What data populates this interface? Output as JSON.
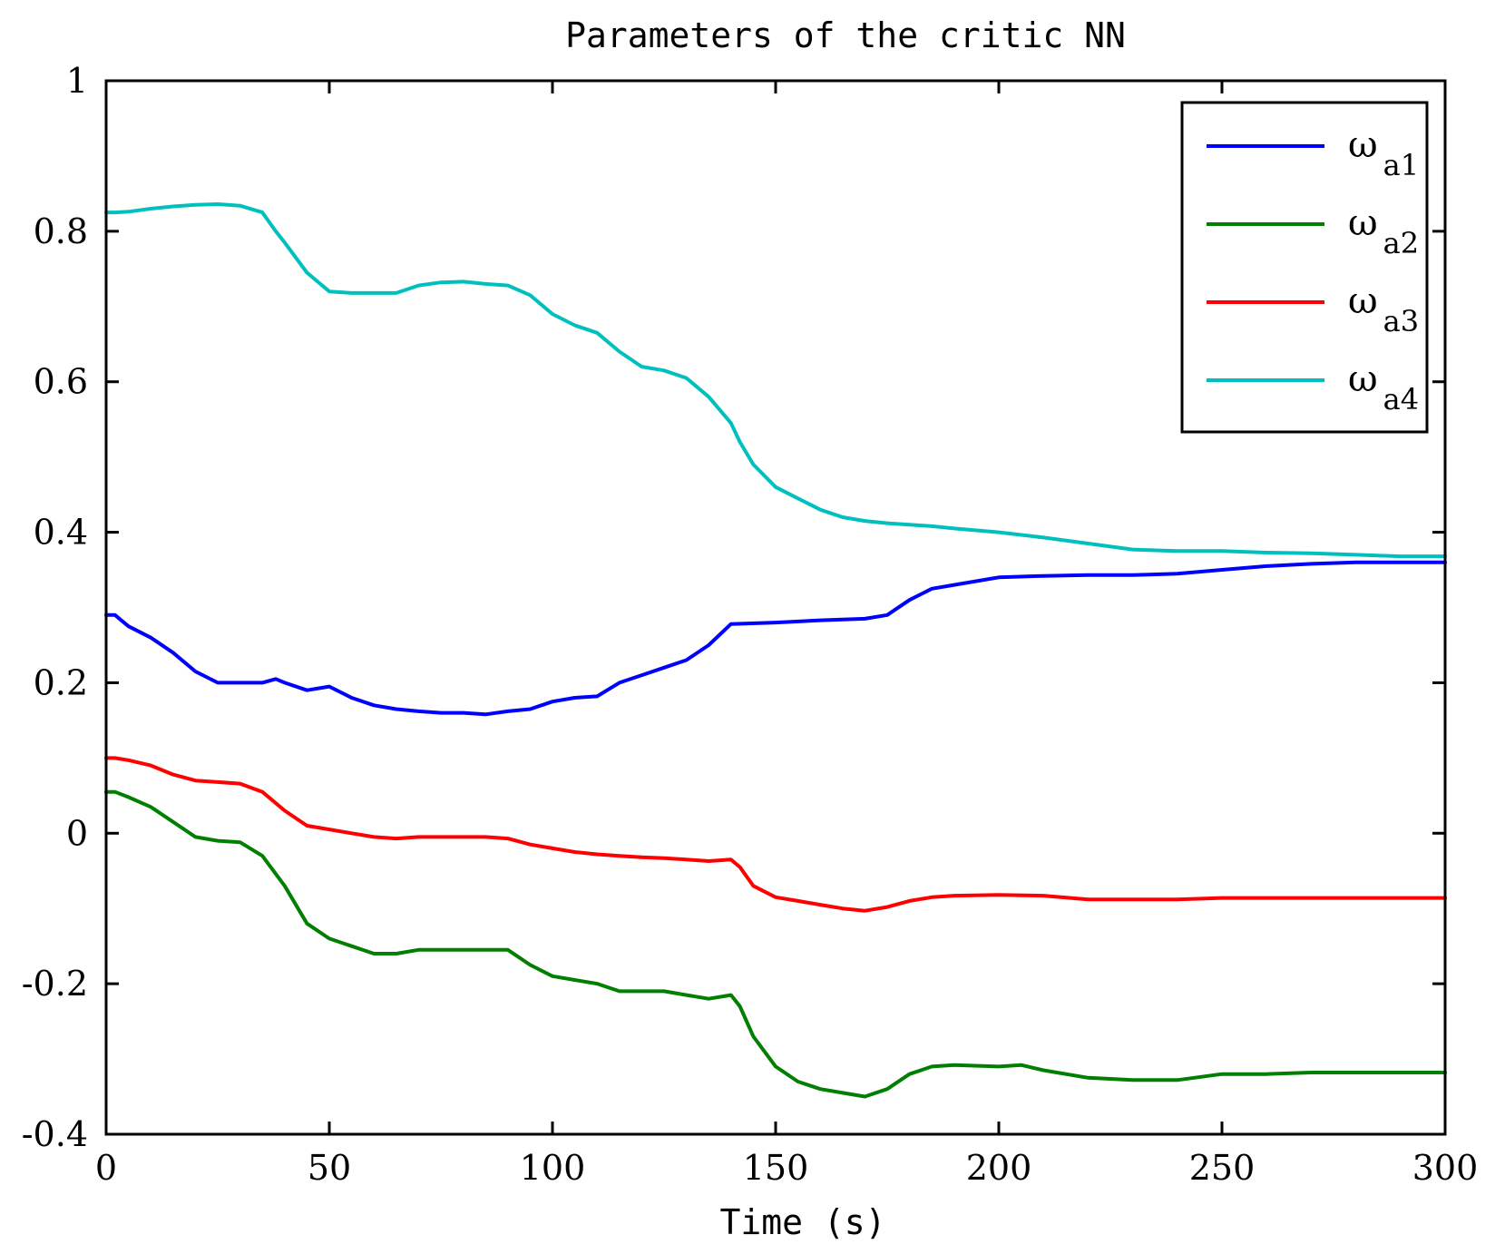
{
  "chart_data": {
    "type": "line",
    "title": "Parameters of the critic NN",
    "xlabel": "Time (s)",
    "ylabel": "",
    "xlim": [
      0,
      300
    ],
    "ylim": [
      -0.4,
      1
    ],
    "xticks": [
      0,
      50,
      100,
      150,
      200,
      250,
      300
    ],
    "xtick_labels": [
      "0",
      "50",
      "100",
      "150",
      "200",
      "250",
      "300"
    ],
    "yticks": [
      -0.4,
      -0.2,
      0,
      0.2,
      0.4,
      0.6,
      0.8,
      1
    ],
    "ytick_labels": [
      "-0.4",
      "-0.2",
      "0",
      "0.2",
      "0.4",
      "0.6",
      "0.8",
      "1"
    ],
    "grid": false,
    "legend_position": "top-right",
    "series": [
      {
        "name": "ωa1",
        "symbol": "ω",
        "sub": "a1",
        "color": "#0000ff",
        "x": [
          0,
          2,
          5,
          10,
          15,
          20,
          25,
          30,
          35,
          38,
          40,
          45,
          50,
          55,
          60,
          65,
          70,
          75,
          80,
          85,
          90,
          95,
          100,
          105,
          110,
          115,
          120,
          125,
          130,
          135,
          140,
          150,
          160,
          170,
          175,
          180,
          185,
          190,
          200,
          210,
          220,
          230,
          240,
          250,
          260,
          270,
          280,
          290,
          300
        ],
        "y": [
          0.29,
          0.29,
          0.275,
          0.26,
          0.24,
          0.215,
          0.2,
          0.2,
          0.2,
          0.205,
          0.2,
          0.19,
          0.195,
          0.18,
          0.17,
          0.165,
          0.162,
          0.16,
          0.16,
          0.158,
          0.162,
          0.165,
          0.175,
          0.18,
          0.182,
          0.2,
          0.21,
          0.22,
          0.23,
          0.25,
          0.278,
          0.28,
          0.283,
          0.285,
          0.29,
          0.31,
          0.325,
          0.33,
          0.34,
          0.342,
          0.343,
          0.343,
          0.345,
          0.35,
          0.355,
          0.358,
          0.36,
          0.36,
          0.36
        ]
      },
      {
        "name": "ωa2",
        "symbol": "ω",
        "sub": "a2",
        "color": "#007f00",
        "x": [
          0,
          2,
          5,
          10,
          15,
          20,
          25,
          30,
          35,
          40,
          45,
          50,
          55,
          60,
          65,
          70,
          75,
          80,
          85,
          90,
          95,
          100,
          105,
          110,
          115,
          120,
          125,
          130,
          135,
          140,
          142,
          145,
          150,
          155,
          160,
          165,
          170,
          175,
          180,
          185,
          190,
          200,
          205,
          210,
          220,
          230,
          240,
          250,
          260,
          270,
          280,
          290,
          300
        ],
        "y": [
          0.055,
          0.055,
          0.048,
          0.035,
          0.015,
          -0.005,
          -0.01,
          -0.012,
          -0.03,
          -0.07,
          -0.12,
          -0.14,
          -0.15,
          -0.16,
          -0.16,
          -0.155,
          -0.155,
          -0.155,
          -0.155,
          -0.155,
          -0.175,
          -0.19,
          -0.195,
          -0.2,
          -0.21,
          -0.21,
          -0.21,
          -0.215,
          -0.22,
          -0.215,
          -0.23,
          -0.27,
          -0.31,
          -0.33,
          -0.34,
          -0.345,
          -0.35,
          -0.34,
          -0.32,
          -0.31,
          -0.308,
          -0.31,
          -0.308,
          -0.315,
          -0.325,
          -0.328,
          -0.328,
          -0.32,
          -0.32,
          -0.318,
          -0.318,
          -0.318,
          -0.318
        ]
      },
      {
        "name": "ωa3",
        "symbol": "ω",
        "sub": "a3",
        "color": "#ff0000",
        "x": [
          0,
          2,
          5,
          10,
          15,
          20,
          25,
          30,
          35,
          40,
          45,
          50,
          55,
          60,
          65,
          70,
          75,
          80,
          85,
          90,
          95,
          100,
          105,
          110,
          115,
          120,
          125,
          130,
          135,
          140,
          142,
          145,
          150,
          155,
          160,
          165,
          170,
          175,
          180,
          185,
          190,
          200,
          210,
          220,
          230,
          240,
          250,
          260,
          270,
          280,
          290,
          300
        ],
        "y": [
          0.1,
          0.1,
          0.097,
          0.09,
          0.078,
          0.07,
          0.068,
          0.066,
          0.055,
          0.03,
          0.01,
          0.005,
          0.0,
          -0.005,
          -0.007,
          -0.005,
          -0.005,
          -0.005,
          -0.005,
          -0.007,
          -0.015,
          -0.02,
          -0.025,
          -0.028,
          -0.03,
          -0.032,
          -0.033,
          -0.035,
          -0.037,
          -0.035,
          -0.045,
          -0.07,
          -0.085,
          -0.09,
          -0.095,
          -0.1,
          -0.103,
          -0.098,
          -0.09,
          -0.085,
          -0.083,
          -0.082,
          -0.083,
          -0.088,
          -0.088,
          -0.088,
          -0.086,
          -0.086,
          -0.086,
          -0.086,
          -0.086,
          -0.086
        ]
      },
      {
        "name": "ωa4",
        "symbol": "ω",
        "sub": "a4",
        "color": "#00bfbf",
        "x": [
          0,
          2,
          5,
          10,
          15,
          20,
          25,
          30,
          35,
          38,
          40,
          45,
          50,
          55,
          60,
          65,
          70,
          75,
          80,
          85,
          90,
          95,
          100,
          105,
          110,
          115,
          120,
          125,
          130,
          135,
          140,
          142,
          145,
          150,
          155,
          160,
          165,
          170,
          175,
          180,
          185,
          190,
          200,
          210,
          220,
          230,
          240,
          250,
          260,
          270,
          280,
          290,
          300
        ],
        "y": [
          0.825,
          0.825,
          0.826,
          0.83,
          0.833,
          0.835,
          0.836,
          0.834,
          0.825,
          0.8,
          0.785,
          0.745,
          0.72,
          0.718,
          0.718,
          0.718,
          0.728,
          0.732,
          0.733,
          0.73,
          0.728,
          0.715,
          0.69,
          0.675,
          0.665,
          0.64,
          0.62,
          0.615,
          0.605,
          0.58,
          0.545,
          0.52,
          0.49,
          0.46,
          0.445,
          0.43,
          0.42,
          0.415,
          0.412,
          0.41,
          0.408,
          0.405,
          0.4,
          0.393,
          0.385,
          0.377,
          0.375,
          0.375,
          0.373,
          0.372,
          0.37,
          0.368,
          0.368
        ]
      }
    ]
  }
}
